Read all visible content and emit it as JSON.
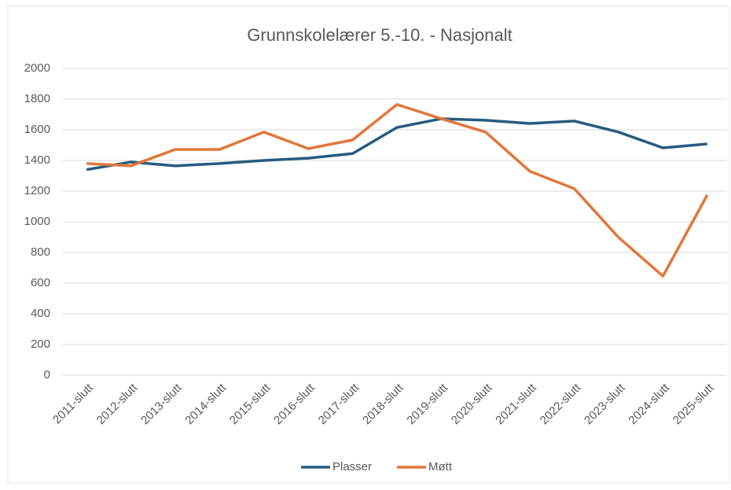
{
  "chart_data": {
    "type": "line",
    "title": "Grunnskolelærer 5.-10. - Nasjonalt",
    "categories": [
      "2011-slutt",
      "2012-slutt",
      "2013-slutt",
      "2014-slutt",
      "2015-slutt",
      "2016-slutt",
      "2017-slutt",
      "2018-slutt",
      "2019-slutt",
      "2020-slutt",
      "2021-slutt",
      "2022-slutt",
      "2023-slutt",
      "2024-slutt",
      "2025-slutt"
    ],
    "series": [
      {
        "name": "Plasser",
        "color": "#265c7e",
        "values": [
          1340,
          1390,
          1365,
          1380,
          1400,
          1415,
          1445,
          1615,
          1672,
          1662,
          1641,
          1657,
          1585,
          1482,
          1508
        ]
      },
      {
        "name": "Møtt",
        "color": "#e0773a",
        "values": [
          1380,
          1365,
          1472,
          1472,
          1585,
          1477,
          1534,
          1765,
          1672,
          1585,
          1329,
          1216,
          898,
          646,
          1175
        ]
      }
    ],
    "ylim": [
      0,
      2000
    ],
    "yticks": [
      0,
      200,
      400,
      600,
      800,
      1000,
      1200,
      1400,
      1600,
      1800,
      2000
    ],
    "grid": true,
    "legend": "bottom"
  }
}
